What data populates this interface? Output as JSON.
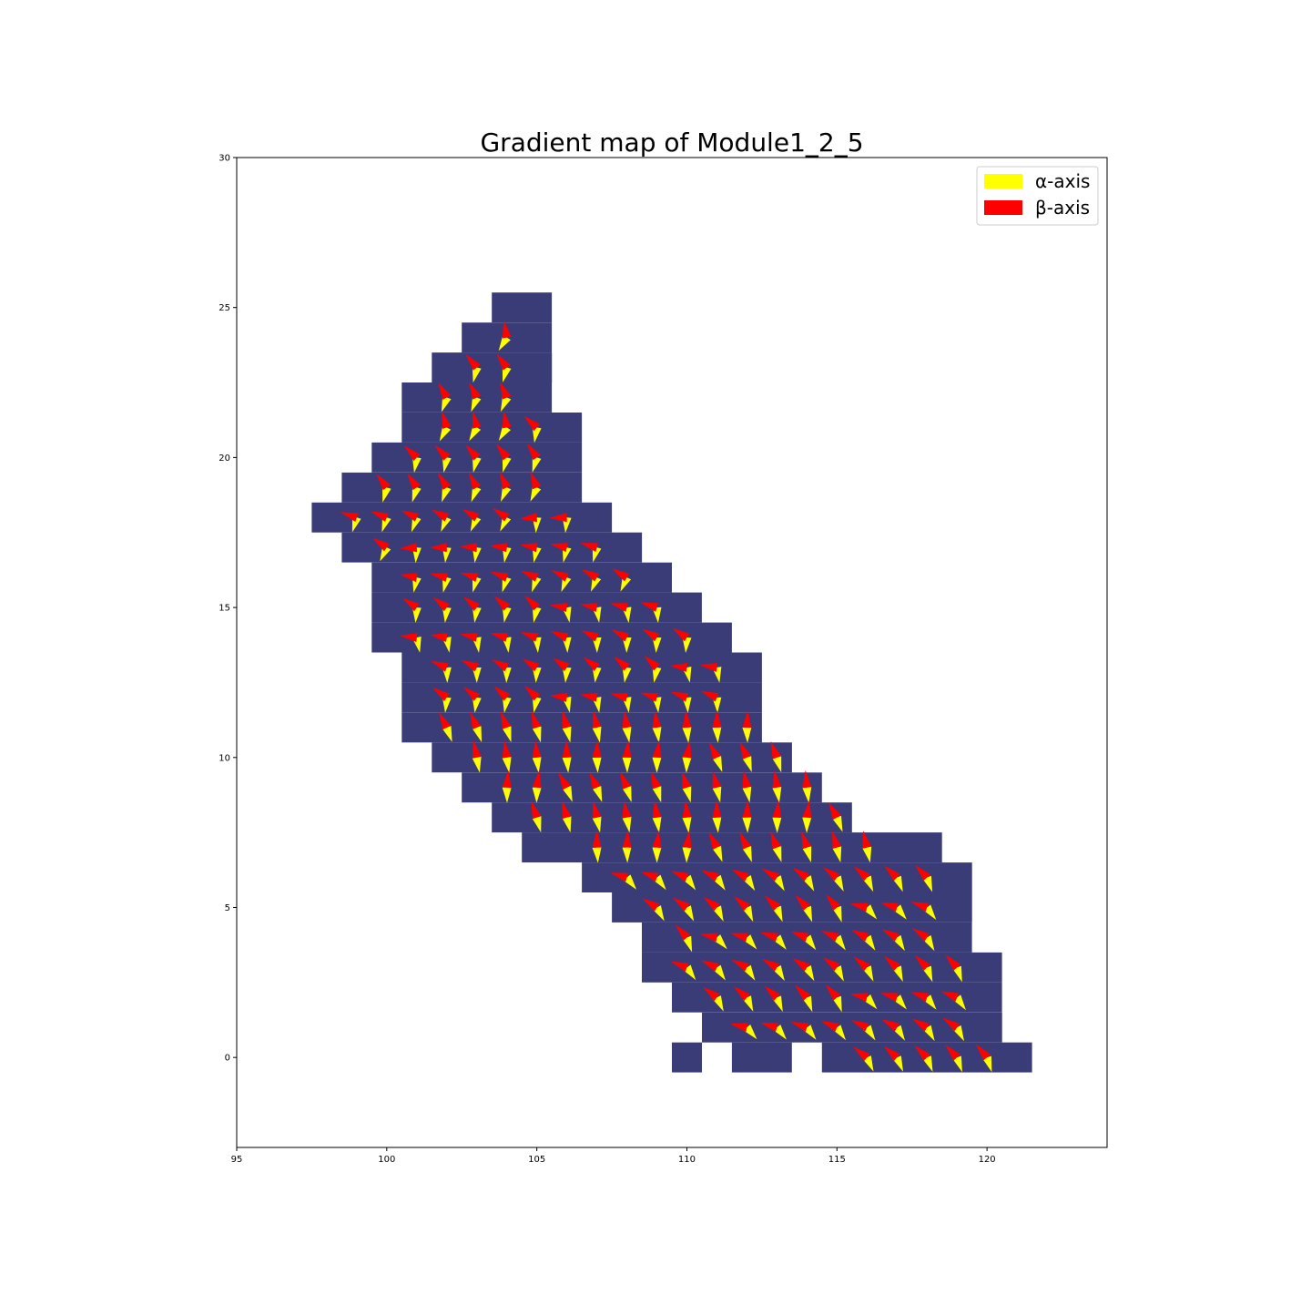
{
  "chart_data": {
    "type": "quiver-map",
    "title": "Gradient map of Module1_2_5",
    "xlim": [
      95,
      124
    ],
    "ylim": [
      -3,
      30
    ],
    "xticks": [
      "95",
      "100",
      "105",
      "110",
      "115",
      "120"
    ],
    "yticks": [
      "0",
      "5",
      "10",
      "15",
      "20",
      "25",
      "30"
    ],
    "legend_position": "upper-right",
    "legend": [
      {
        "label": "α-axis",
        "color": "#ffff00"
      },
      {
        "label": "β-axis",
        "color": "#ff0000"
      }
    ],
    "cell_color": "#3a3c78",
    "cell_rows": [
      {
        "y": 25,
        "x": [
          [
            104,
            105
          ]
        ]
      },
      {
        "y": 24,
        "x": [
          [
            103,
            105
          ]
        ]
      },
      {
        "y": 23,
        "x": [
          [
            102,
            105
          ]
        ]
      },
      {
        "y": 22,
        "x": [
          [
            101,
            105
          ]
        ]
      },
      {
        "y": 21,
        "x": [
          [
            101,
            106
          ]
        ]
      },
      {
        "y": 20,
        "x": [
          [
            100,
            106
          ]
        ]
      },
      {
        "y": 19,
        "x": [
          [
            99,
            106
          ]
        ]
      },
      {
        "y": 18,
        "x": [
          [
            98,
            107
          ]
        ]
      },
      {
        "y": 17,
        "x": [
          [
            99,
            108
          ]
        ]
      },
      {
        "y": 16,
        "x": [
          [
            100,
            109
          ]
        ]
      },
      {
        "y": 15,
        "x": [
          [
            100,
            110
          ]
        ]
      },
      {
        "y": 14,
        "x": [
          [
            100,
            111
          ]
        ]
      },
      {
        "y": 13,
        "x": [
          [
            101,
            112
          ]
        ]
      },
      {
        "y": 12,
        "x": [
          [
            101,
            112
          ]
        ]
      },
      {
        "y": 11,
        "x": [
          [
            101,
            112
          ]
        ]
      },
      {
        "y": 10,
        "x": [
          [
            102,
            113
          ]
        ]
      },
      {
        "y": 9,
        "x": [
          [
            103,
            114
          ]
        ]
      },
      {
        "y": 8,
        "x": [
          [
            104,
            115
          ]
        ]
      },
      {
        "y": 7,
        "x": [
          [
            105,
            118
          ]
        ]
      },
      {
        "y": 6,
        "x": [
          [
            107,
            119
          ]
        ]
      },
      {
        "y": 5,
        "x": [
          [
            108,
            119
          ]
        ]
      },
      {
        "y": 4,
        "x": [
          [
            109,
            119
          ]
        ]
      },
      {
        "y": 3,
        "x": [
          [
            109,
            120
          ]
        ]
      },
      {
        "y": 2,
        "x": [
          [
            110,
            120
          ]
        ]
      },
      {
        "y": 1,
        "x": [
          [
            111,
            120
          ]
        ]
      },
      {
        "y": 0,
        "x": [
          [
            110,
            110
          ],
          [
            112,
            113
          ],
          [
            115,
            121
          ]
        ]
      }
    ],
    "arrow_rows": [
      {
        "y": 24,
        "x": [
          [
            104,
            104
          ]
        ]
      },
      {
        "y": 23,
        "x": [
          [
            103,
            104
          ]
        ]
      },
      {
        "y": 22,
        "x": [
          [
            102,
            104
          ]
        ]
      },
      {
        "y": 21,
        "x": [
          [
            102,
            105
          ]
        ]
      },
      {
        "y": 20,
        "x": [
          [
            101,
            105
          ]
        ]
      },
      {
        "y": 19,
        "x": [
          [
            100,
            105
          ]
        ]
      },
      {
        "y": 18,
        "x": [
          [
            99,
            106
          ]
        ]
      },
      {
        "y": 17,
        "x": [
          [
            100,
            107
          ]
        ]
      },
      {
        "y": 16,
        "x": [
          [
            101,
            108
          ]
        ]
      },
      {
        "y": 15,
        "x": [
          [
            101,
            109
          ]
        ]
      },
      {
        "y": 14,
        "x": [
          [
            101,
            110
          ]
        ]
      },
      {
        "y": 13,
        "x": [
          [
            102,
            111
          ]
        ]
      },
      {
        "y": 12,
        "x": [
          [
            102,
            111
          ]
        ]
      },
      {
        "y": 11,
        "x": [
          [
            102,
            112
          ]
        ]
      },
      {
        "y": 10,
        "x": [
          [
            103,
            113
          ]
        ]
      },
      {
        "y": 9,
        "x": [
          [
            104,
            114
          ]
        ]
      },
      {
        "y": 8,
        "x": [
          [
            105,
            115
          ]
        ]
      },
      {
        "y": 7,
        "x": [
          [
            107,
            116
          ]
        ]
      },
      {
        "y": 6,
        "x": [
          [
            108,
            118
          ]
        ]
      },
      {
        "y": 5,
        "x": [
          [
            109,
            118
          ]
        ]
      },
      {
        "y": 4,
        "x": [
          [
            110,
            118
          ]
        ]
      },
      {
        "y": 3,
        "x": [
          [
            110,
            119
          ]
        ]
      },
      {
        "y": 2,
        "x": [
          [
            111,
            119
          ]
        ]
      },
      {
        "y": 1,
        "x": [
          [
            112,
            119
          ]
        ]
      },
      {
        "y": 0,
        "x": [
          [
            116,
            120
          ]
        ]
      }
    ],
    "arrow_direction_deg_by_row": [
      {
        "y_min": 19,
        "beta_deg": 120,
        "alpha_deg": 250
      },
      {
        "y_min": 16,
        "beta_deg": 165,
        "alpha_deg": 255
      },
      {
        "y_min": 12,
        "beta_deg": 155,
        "alpha_deg": 270
      },
      {
        "y_min": 7,
        "beta_deg": 100,
        "alpha_deg": 280
      },
      {
        "y_min": 0,
        "beta_deg": 150,
        "alpha_deg": 300
      }
    ]
  }
}
